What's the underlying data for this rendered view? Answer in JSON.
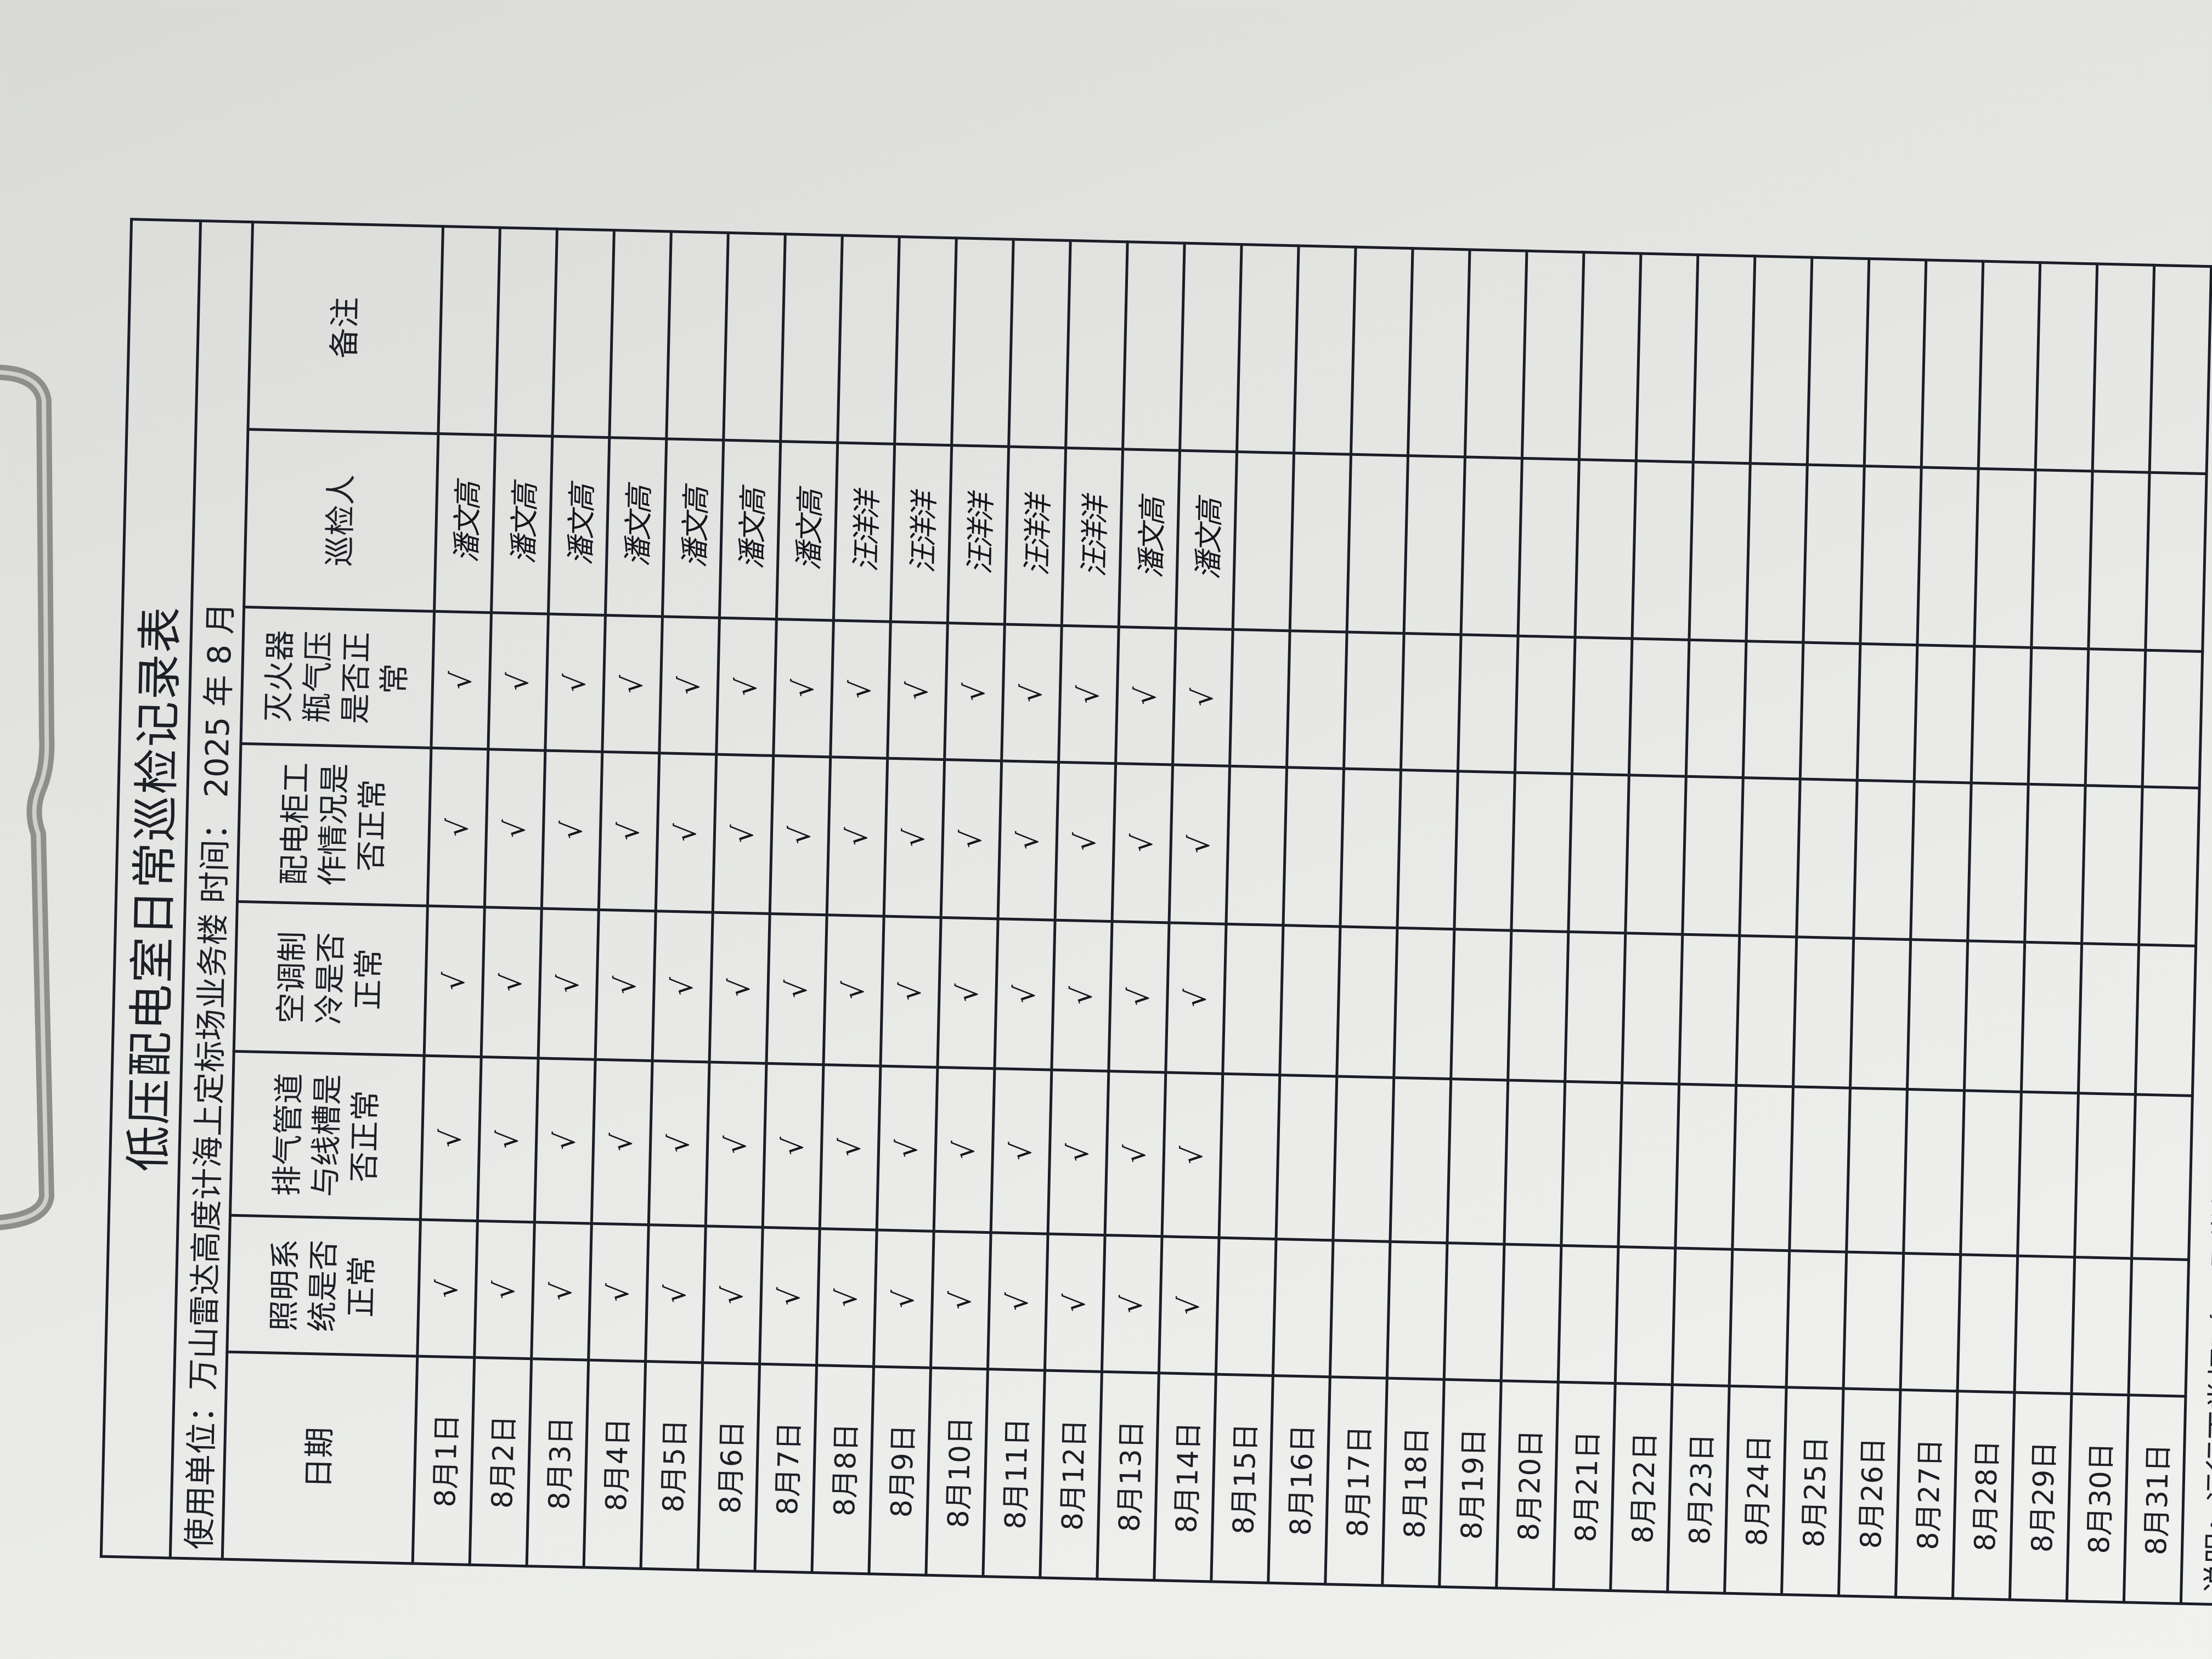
{
  "form": {
    "title": "低压配电室日常巡检记录表",
    "unit_line": "使用单位：万山雷达高度计海上定标场业务楼 时间： 2025 年 8 月",
    "headers": [
      "日期",
      "照明系统是否正常",
      "排气管道与线槽是否正常",
      "空调制冷是否正常",
      "配电柜工作情况是否正常",
      "灭火器瓶气压是否正常",
      "巡检人",
      "备注"
    ],
    "rows": [
      {
        "date": "8月1日",
        "checks": [
          "√",
          "√",
          "√",
          "√",
          "√"
        ],
        "inspector": "潘文高",
        "note": ""
      },
      {
        "date": "8月2日",
        "checks": [
          "√",
          "√",
          "√",
          "√",
          "√"
        ],
        "inspector": "潘文高",
        "note": ""
      },
      {
        "date": "8月3日",
        "checks": [
          "√",
          "√",
          "√",
          "√",
          "√"
        ],
        "inspector": "潘文高",
        "note": ""
      },
      {
        "date": "8月4日",
        "checks": [
          "√",
          "√",
          "√",
          "√",
          "√"
        ],
        "inspector": "潘文高",
        "note": ""
      },
      {
        "date": "8月5日",
        "checks": [
          "√",
          "√",
          "√",
          "√",
          "√"
        ],
        "inspector": "潘文高",
        "note": ""
      },
      {
        "date": "8月6日",
        "checks": [
          "√",
          "√",
          "√",
          "√",
          "√"
        ],
        "inspector": "潘文高",
        "note": ""
      },
      {
        "date": "8月7日",
        "checks": [
          "√",
          "√",
          "√",
          "√",
          "√"
        ],
        "inspector": "潘文高",
        "note": ""
      },
      {
        "date": "8月8日",
        "checks": [
          "√",
          "√",
          "√",
          "√",
          "√"
        ],
        "inspector": "汪洋洋",
        "note": ""
      },
      {
        "date": "8月9日",
        "checks": [
          "√",
          "√",
          "√",
          "√",
          "√"
        ],
        "inspector": "汪洋洋",
        "note": ""
      },
      {
        "date": "8月10日",
        "checks": [
          "√",
          "√",
          "√",
          "√",
          "√"
        ],
        "inspector": "汪洋洋",
        "note": ""
      },
      {
        "date": "8月11日",
        "checks": [
          "√",
          "√",
          "√",
          "√",
          "√"
        ],
        "inspector": "汪洋洋",
        "note": ""
      },
      {
        "date": "8月12日",
        "checks": [
          "√",
          "√",
          "√",
          "√",
          "√"
        ],
        "inspector": "汪洋洋",
        "note": ""
      },
      {
        "date": "8月13日",
        "checks": [
          "√",
          "√",
          "√",
          "√",
          "√"
        ],
        "inspector": "潘文高",
        "note": ""
      },
      {
        "date": "8月14日",
        "checks": [
          "√",
          "√",
          "√",
          "√",
          "√"
        ],
        "inspector": "潘文高",
        "note": ""
      },
      {
        "date": "8月15日",
        "checks": [
          "",
          "",
          "",
          "",
          ""
        ],
        "inspector": "",
        "note": ""
      },
      {
        "date": "8月16日",
        "checks": [
          "",
          "",
          "",
          "",
          ""
        ],
        "inspector": "",
        "note": ""
      },
      {
        "date": "8月17日",
        "checks": [
          "",
          "",
          "",
          "",
          ""
        ],
        "inspector": "",
        "note": ""
      },
      {
        "date": "8月18日",
        "checks": [
          "",
          "",
          "",
          "",
          ""
        ],
        "inspector": "",
        "note": ""
      },
      {
        "date": "8月19日",
        "checks": [
          "",
          "",
          "",
          "",
          ""
        ],
        "inspector": "",
        "note": ""
      },
      {
        "date": "8月20日",
        "checks": [
          "",
          "",
          "",
          "",
          ""
        ],
        "inspector": "",
        "note": ""
      },
      {
        "date": "8月21日",
        "checks": [
          "",
          "",
          "",
          "",
          ""
        ],
        "inspector": "",
        "note": ""
      },
      {
        "date": "8月22日",
        "checks": [
          "",
          "",
          "",
          "",
          ""
        ],
        "inspector": "",
        "note": ""
      },
      {
        "date": "8月23日",
        "checks": [
          "",
          "",
          "",
          "",
          ""
        ],
        "inspector": "",
        "note": ""
      },
      {
        "date": "8月24日",
        "checks": [
          "",
          "",
          "",
          "",
          ""
        ],
        "inspector": "",
        "note": ""
      },
      {
        "date": "8月25日",
        "checks": [
          "",
          "",
          "",
          "",
          ""
        ],
        "inspector": "",
        "note": ""
      },
      {
        "date": "8月26日",
        "checks": [
          "",
          "",
          "",
          "",
          ""
        ],
        "inspector": "",
        "note": ""
      },
      {
        "date": "8月27日",
        "checks": [
          "",
          "",
          "",
          "",
          ""
        ],
        "inspector": "",
        "note": ""
      },
      {
        "date": "8月28日",
        "checks": [
          "",
          "",
          "",
          "",
          ""
        ],
        "inspector": "",
        "note": ""
      },
      {
        "date": "8月29日",
        "checks": [
          "",
          "",
          "",
          "",
          ""
        ],
        "inspector": "",
        "note": ""
      },
      {
        "date": "8月30日",
        "checks": [
          "",
          "",
          "",
          "",
          ""
        ],
        "inspector": "",
        "note": ""
      },
      {
        "date": "8月31日",
        "checks": [
          "",
          "",
          "",
          "",
          ""
        ],
        "inspector": "",
        "note": ""
      }
    ],
    "footer_note": "说明：运行正常打\"√\"，异常打\"×\"并说明，需要调整检修打\"△\""
  },
  "colors": {
    "ink": "#1b1d27",
    "paper": "#e6e7e5",
    "clip": "#8e8f8d"
  }
}
